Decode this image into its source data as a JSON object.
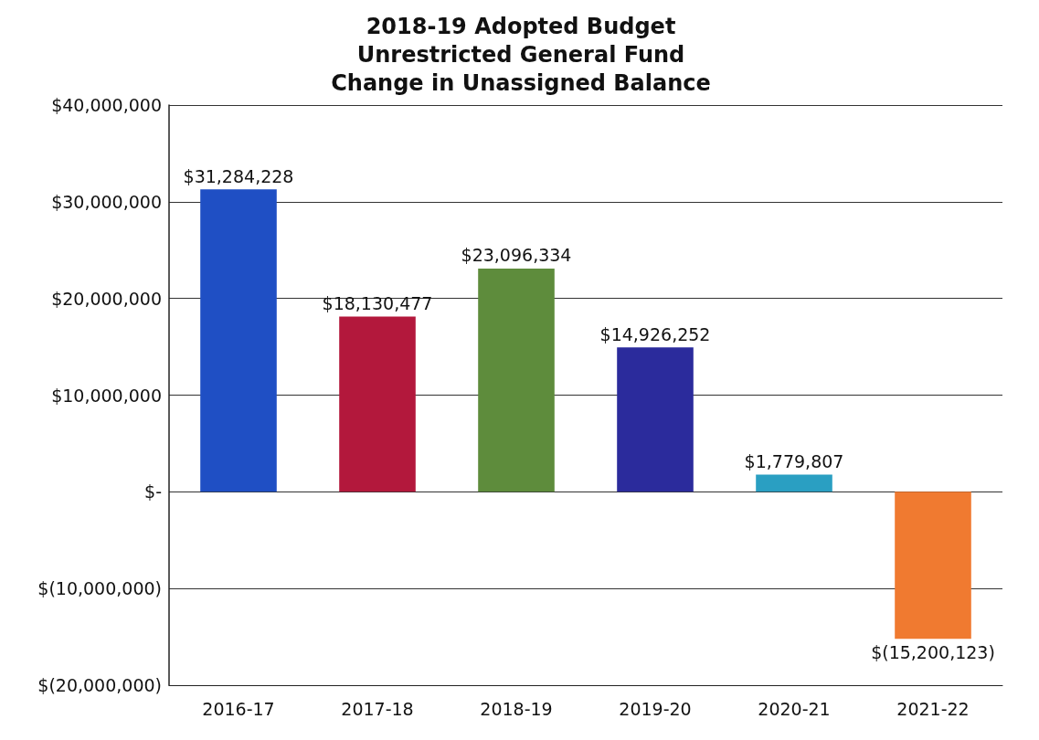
{
  "chart_data": {
    "type": "bar",
    "title": "2018-19 Adopted Budget\nUnrestricted General Fund\nChange in Unassigned Balance",
    "categories": [
      "2016-17",
      "2017-18",
      "2018-19",
      "2019-20",
      "2020-21",
      "2021-22"
    ],
    "values": [
      31284228,
      18130477,
      23096334,
      14926252,
      1779807,
      -15200123
    ],
    "colors": [
      "#1f4fc4",
      "#b3183c",
      "#5e8c3c",
      "#2b2b9c",
      "#2a9fc2",
      "#f07a30"
    ],
    "value_labels": [
      "$31,284,228",
      "$18,130,477",
      "$23,096,334",
      "$14,926,252",
      "$1,779,807",
      "$(15,200,123)"
    ],
    "ylim": [
      -20000000,
      40000000
    ],
    "yticks": [
      {
        "value": -20000000,
        "label": "$(20,000,000)"
      },
      {
        "value": -10000000,
        "label": "$(10,000,000)"
      },
      {
        "value": 0,
        "label": "$-"
      },
      {
        "value": 10000000,
        "label": "$10,000,000"
      },
      {
        "value": 20000000,
        "label": "$20,000,000"
      },
      {
        "value": 30000000,
        "label": "$30,000,000"
      },
      {
        "value": 40000000,
        "label": "$40,000,000"
      }
    ],
    "grid": "y"
  }
}
